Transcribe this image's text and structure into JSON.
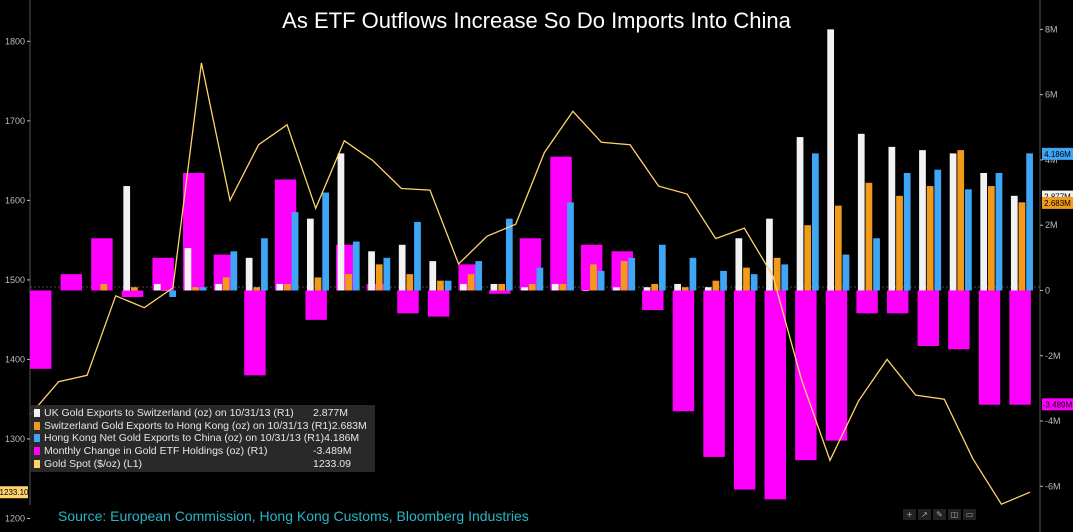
{
  "title": "As ETF Outflows Increase So Do Imports Into China",
  "source": "Source: European Commission, Hong Kong Customs, Bloomberg Industries",
  "colors": {
    "uk": "#f2f2f2",
    "swiss": "#f29a1c",
    "hk": "#3fa6f5",
    "etf": "#ff00ff",
    "gold": "#ffd36b",
    "axis": "#bbbbbb"
  },
  "toolbar": [
    "+",
    "↗",
    "✎",
    "◫",
    "▭"
  ],
  "legend": [
    {
      "key": "uk",
      "label": "UK Gold Exports to Switzerland (oz) on 10/31/13 (R1)",
      "value": "2.877M"
    },
    {
      "key": "swiss",
      "label": "Switzerland Gold Exports to Hong Kong (oz) on 10/31/13 (R1)",
      "value": "2.683M"
    },
    {
      "key": "hk",
      "label": "Hong Kong Net Gold Exports to China (oz) on 10/31/13 (R1)",
      "value": "4.186M"
    },
    {
      "key": "etf",
      "label": "Monthly Change in Gold ETF Holdings (oz) (R1)",
      "value": "-3.489M"
    },
    {
      "key": "gold",
      "label": "Gold Spot ($/oz) (L1)",
      "value": "1233.09"
    }
  ],
  "chart_data": {
    "type": "bar",
    "left_axis": {
      "ticks": [
        "1200",
        "1300",
        "1400",
        "1500",
        "1600",
        "1700",
        "1800"
      ],
      "ylim": [
        1183,
        1852
      ]
    },
    "right_axis": {
      "ticks": [
        "-6M",
        "-4M",
        "-2M",
        "0",
        "2M",
        "4M",
        "6M",
        "8M"
      ],
      "ylim": [
        -7.4,
        8.9
      ]
    },
    "tags": {
      "left": "1233.10",
      "right": [
        {
          "label": "4.186M",
          "value": 4.186,
          "key": "hk"
        },
        {
          "label": "2.877M",
          "value": 2.877,
          "key": "uk"
        },
        {
          "label": "2.683M",
          "value": 2.683,
          "key": "swiss"
        },
        {
          "label": "-3.489M",
          "value": -3.489,
          "key": "etf"
        }
      ]
    },
    "series": [
      {
        "key": "etf",
        "values": [
          -2.4,
          0.5,
          1.6,
          -0.2,
          1.0,
          3.6,
          1.1,
          -2.6,
          3.4,
          -0.9,
          1.4,
          0.2,
          -0.7,
          -0.8,
          0.8,
          -0.1,
          1.6,
          4.1,
          1.4,
          1.2,
          -0.6,
          -3.7,
          -5.1,
          -6.1,
          -6.4,
          -5.2,
          -4.6,
          -0.7,
          -0.7,
          -1.7,
          -1.8,
          -3.5,
          -3.5
        ]
      },
      {
        "key": "uk",
        "values": [
          3.2,
          0.2,
          1.3,
          0.2,
          1.0,
          0.2,
          2.2,
          4.2,
          1.2,
          1.4,
          0.9,
          0.2,
          0.2,
          0.1,
          0.2,
          0.0,
          0.1,
          0.1,
          0.2,
          0.1,
          1.6,
          2.2,
          4.7,
          8.0,
          4.8,
          4.4,
          4.3,
          4.2,
          3.6,
          2.9
        ]
      },
      {
        "key": "swiss",
        "values": [
          0.2,
          0.1,
          0.0,
          0.1,
          0.4,
          0.1,
          0.2,
          0.4,
          0.5,
          0.8,
          0.5,
          0.3,
          0.5,
          0.2,
          0.2,
          0.2,
          0.8,
          0.9,
          0.2,
          0.1,
          0.3,
          0.7,
          1.0,
          2.0,
          2.6,
          3.3,
          2.9,
          3.2,
          4.3,
          3.2,
          2.7
        ]
      },
      {
        "key": "hk",
        "values": [
          -0.2,
          0.1,
          1.2,
          1.6,
          2.4,
          3.0,
          1.5,
          1.0,
          2.1,
          0.3,
          0.9,
          2.2,
          0.7,
          2.7,
          0.6,
          1.0,
          1.4,
          1.0,
          0.6,
          0.5,
          0.8,
          4.2,
          1.1,
          1.6,
          3.6,
          3.7,
          3.1,
          3.6,
          4.2
        ]
      },
      {
        "key": "gold",
        "values": [
          1330,
          1372,
          1380,
          1480,
          1465,
          1490,
          1773,
          1600,
          1670,
          1695,
          1590,
          1675,
          1650,
          1615,
          1613,
          1520,
          1555,
          1570,
          1660,
          1712,
          1673,
          1670,
          1618,
          1608,
          1552,
          1565,
          1505,
          1375,
          1273,
          1348,
          1400,
          1355,
          1350,
          1275,
          1218,
          1233
        ]
      }
    ]
  }
}
